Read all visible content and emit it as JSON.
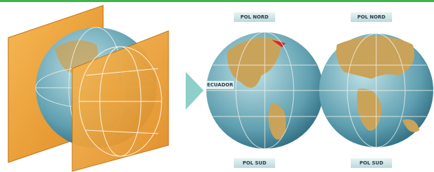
{
  "globes": [
    {
      "north": "POL NORD",
      "equator": "ECUADOR",
      "south": "POL SUD"
    },
    {
      "north": "POL NORD",
      "south": "POL SUD"
    }
  ]
}
